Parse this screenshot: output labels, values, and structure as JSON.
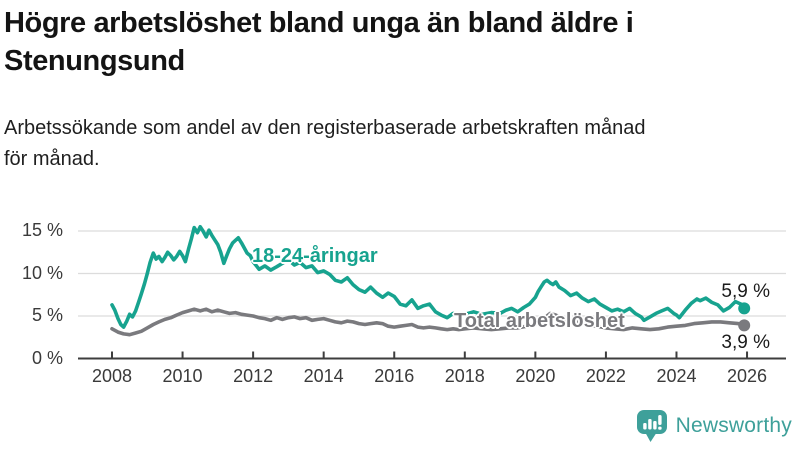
{
  "header": {
    "title_lines": [
      "Högre arbetslöshet bland unga än bland äldre i",
      "Stenungsund"
    ],
    "subtitle_lines": [
      "Arbetssökande som andel av den registerbaserade arbetskraften månad",
      "för månad."
    ]
  },
  "footer": {
    "brand": "Newsworthy",
    "brand_color": "#3EA09A",
    "logo_icon": "bar-chart-speech-bubble"
  },
  "chart_data": {
    "type": "line",
    "title": "Högre arbetslöshet bland unga än bland äldre i Stenungsund",
    "subtitle": "Arbetssökande som andel av den registerbaserade arbetskraften månad för månad.",
    "unit": "%",
    "xlabel": "",
    "ylabel": "",
    "xlim": [
      2007.8,
      2026.4
    ],
    "ylim": [
      0,
      16.5
    ],
    "grid": "horizontal",
    "gridline_color": "#dcdcdc",
    "axis_color": "#3d3d3d",
    "legend_position": "inline-labels",
    "x_ticks": [
      2008,
      2010,
      2012,
      2014,
      2016,
      2018,
      2020,
      2022,
      2024,
      2026
    ],
    "y_ticks": [
      {
        "value": 0,
        "label": "0 %"
      },
      {
        "value": 5,
        "label": "5 %"
      },
      {
        "value": 10,
        "label": "10 %"
      },
      {
        "value": 15,
        "label": "15 %"
      }
    ],
    "series": [
      {
        "name": "18-24-åringar",
        "color": "#17A38F",
        "end_label": "5,9 %",
        "end_value": 5.9,
        "points": [
          [
            2008,
            6.3
          ],
          [
            2008.08,
            5.7
          ],
          [
            2008.17,
            4.7
          ],
          [
            2008.25,
            4
          ],
          [
            2008.33,
            3.7
          ],
          [
            2008.42,
            4.4
          ],
          [
            2008.5,
            5.2
          ],
          [
            2008.58,
            4.9
          ],
          [
            2008.67,
            5.6
          ],
          [
            2008.75,
            6.6
          ],
          [
            2008.83,
            7.6
          ],
          [
            2008.92,
            8.8
          ],
          [
            2009,
            10
          ],
          [
            2009.08,
            11.3
          ],
          [
            2009.17,
            12.4
          ],
          [
            2009.25,
            11.7
          ],
          [
            2009.33,
            12
          ],
          [
            2009.42,
            11.4
          ],
          [
            2009.5,
            11.9
          ],
          [
            2009.58,
            12.5
          ],
          [
            2009.67,
            12.1
          ],
          [
            2009.75,
            11.6
          ],
          [
            2009.83,
            12
          ],
          [
            2009.92,
            12.6
          ],
          [
            2010,
            12.1
          ],
          [
            2010.08,
            11.4
          ],
          [
            2010.17,
            12.9
          ],
          [
            2010.25,
            14.1
          ],
          [
            2010.33,
            15.4
          ],
          [
            2010.42,
            14.8
          ],
          [
            2010.5,
            15.5
          ],
          [
            2010.58,
            15
          ],
          [
            2010.67,
            14.3
          ],
          [
            2010.75,
            15.1
          ],
          [
            2010.83,
            14.5
          ],
          [
            2010.92,
            13.9
          ],
          [
            2011,
            13.4
          ],
          [
            2011.08,
            12.5
          ],
          [
            2011.17,
            11.2
          ],
          [
            2011.25,
            12.1
          ],
          [
            2011.33,
            12.9
          ],
          [
            2011.42,
            13.6
          ],
          [
            2011.5,
            13.9
          ],
          [
            2011.58,
            14.2
          ],
          [
            2011.67,
            13.6
          ],
          [
            2011.75,
            13
          ],
          [
            2011.83,
            12.4
          ],
          [
            2011.92,
            12.1
          ],
          [
            2012,
            11.4
          ],
          [
            2012.17,
            10.5
          ],
          [
            2012.33,
            10.9
          ],
          [
            2012.5,
            10.4
          ],
          [
            2012.67,
            10.8
          ],
          [
            2012.83,
            11.2
          ],
          [
            2013,
            11.6
          ],
          [
            2013.17,
            11
          ],
          [
            2013.33,
            11.3
          ],
          [
            2013.5,
            10.7
          ],
          [
            2013.67,
            10.9
          ],
          [
            2013.83,
            10.1
          ],
          [
            2014,
            10.3
          ],
          [
            2014.17,
            9.9
          ],
          [
            2014.33,
            9.2
          ],
          [
            2014.5,
            9
          ],
          [
            2014.67,
            9.5
          ],
          [
            2014.83,
            8.7
          ],
          [
            2015,
            8.1
          ],
          [
            2015.17,
            7.8
          ],
          [
            2015.33,
            8.4
          ],
          [
            2015.5,
            7.7
          ],
          [
            2015.67,
            7.2
          ],
          [
            2015.83,
            7.7
          ],
          [
            2016,
            7.3
          ],
          [
            2016.17,
            6.4
          ],
          [
            2016.33,
            6.2
          ],
          [
            2016.5,
            6.9
          ],
          [
            2016.67,
            5.9
          ],
          [
            2016.83,
            6.2
          ],
          [
            2017,
            6.4
          ],
          [
            2017.17,
            5.5
          ],
          [
            2017.33,
            5.1
          ],
          [
            2017.5,
            4.8
          ],
          [
            2017.67,
            5.3
          ],
          [
            2017.83,
            5
          ],
          [
            2018,
            5.2
          ],
          [
            2018.25,
            5.5
          ],
          [
            2018.5,
            5.2
          ],
          [
            2018.75,
            5.4
          ],
          [
            2019,
            5.3
          ],
          [
            2019.17,
            5.7
          ],
          [
            2019.33,
            5.9
          ],
          [
            2019.5,
            5.5
          ],
          [
            2019.67,
            6
          ],
          [
            2019.83,
            6.4
          ],
          [
            2020,
            7.2
          ],
          [
            2020.08,
            7.9
          ],
          [
            2020.17,
            8.5
          ],
          [
            2020.25,
            9
          ],
          [
            2020.33,
            9.2
          ],
          [
            2020.42,
            8.9
          ],
          [
            2020.5,
            8.7
          ],
          [
            2020.58,
            9
          ],
          [
            2020.67,
            8.4
          ],
          [
            2020.83,
            8
          ],
          [
            2021,
            7.4
          ],
          [
            2021.17,
            7.7
          ],
          [
            2021.33,
            7.1
          ],
          [
            2021.5,
            6.7
          ],
          [
            2021.67,
            7
          ],
          [
            2021.83,
            6.4
          ],
          [
            2022,
            6
          ],
          [
            2022.17,
            5.6
          ],
          [
            2022.33,
            5.8
          ],
          [
            2022.5,
            5.5
          ],
          [
            2022.67,
            5.9
          ],
          [
            2022.83,
            5.3
          ],
          [
            2023,
            4.9
          ],
          [
            2023.08,
            4.5
          ],
          [
            2023.25,
            4.9
          ],
          [
            2023.42,
            5.3
          ],
          [
            2023.58,
            5.6
          ],
          [
            2023.75,
            5.9
          ],
          [
            2023.92,
            5.3
          ],
          [
            2024,
            5.1
          ],
          [
            2024.08,
            4.8
          ],
          [
            2024.25,
            5.7
          ],
          [
            2024.42,
            6.5
          ],
          [
            2024.58,
            7
          ],
          [
            2024.67,
            6.8
          ],
          [
            2024.83,
            7.1
          ],
          [
            2025,
            6.6
          ],
          [
            2025.17,
            6.3
          ],
          [
            2025.33,
            5.6
          ],
          [
            2025.5,
            6
          ],
          [
            2025.67,
            6.7
          ],
          [
            2025.83,
            6.4
          ],
          [
            2025.92,
            5.9
          ]
        ]
      },
      {
        "name": "Total arbetslöshet",
        "color": "#7A7A7E",
        "end_label": "3,9 %",
        "end_value": 3.9,
        "points": [
          [
            2008,
            3.5
          ],
          [
            2008.17,
            3.1
          ],
          [
            2008.33,
            2.9
          ],
          [
            2008.5,
            2.8
          ],
          [
            2008.67,
            3
          ],
          [
            2008.83,
            3.2
          ],
          [
            2009,
            3.6
          ],
          [
            2009.17,
            4
          ],
          [
            2009.33,
            4.3
          ],
          [
            2009.5,
            4.6
          ],
          [
            2009.67,
            4.8
          ],
          [
            2009.83,
            5.1
          ],
          [
            2010,
            5.4
          ],
          [
            2010.17,
            5.6
          ],
          [
            2010.33,
            5.8
          ],
          [
            2010.5,
            5.6
          ],
          [
            2010.67,
            5.8
          ],
          [
            2010.83,
            5.5
          ],
          [
            2011,
            5.7
          ],
          [
            2011.17,
            5.5
          ],
          [
            2011.33,
            5.3
          ],
          [
            2011.5,
            5.4
          ],
          [
            2011.67,
            5.2
          ],
          [
            2011.83,
            5.1
          ],
          [
            2012,
            5
          ],
          [
            2012.17,
            4.8
          ],
          [
            2012.33,
            4.7
          ],
          [
            2012.5,
            4.5
          ],
          [
            2012.67,
            4.8
          ],
          [
            2012.83,
            4.6
          ],
          [
            2013,
            4.8
          ],
          [
            2013.17,
            4.9
          ],
          [
            2013.33,
            4.7
          ],
          [
            2013.5,
            4.8
          ],
          [
            2013.67,
            4.5
          ],
          [
            2013.83,
            4.6
          ],
          [
            2014,
            4.7
          ],
          [
            2014.17,
            4.5
          ],
          [
            2014.33,
            4.3
          ],
          [
            2014.5,
            4.2
          ],
          [
            2014.67,
            4.4
          ],
          [
            2014.83,
            4.3
          ],
          [
            2015,
            4.1
          ],
          [
            2015.17,
            4
          ],
          [
            2015.33,
            4.1
          ],
          [
            2015.5,
            4.2
          ],
          [
            2015.67,
            4.1
          ],
          [
            2015.83,
            3.8
          ],
          [
            2016,
            3.7
          ],
          [
            2016.17,
            3.8
          ],
          [
            2016.33,
            3.9
          ],
          [
            2016.5,
            4
          ],
          [
            2016.67,
            3.7
          ],
          [
            2016.83,
            3.6
          ],
          [
            2017,
            3.7
          ],
          [
            2017.17,
            3.6
          ],
          [
            2017.33,
            3.5
          ],
          [
            2017.5,
            3.4
          ],
          [
            2017.67,
            3.5
          ],
          [
            2017.83,
            3.4
          ],
          [
            2018,
            3.5
          ],
          [
            2018.25,
            3.6
          ],
          [
            2018.5,
            3.5
          ],
          [
            2018.75,
            3.4
          ],
          [
            2019,
            3.5
          ],
          [
            2019.25,
            3.6
          ],
          [
            2019.5,
            3.6
          ],
          [
            2019.75,
            3.8
          ],
          [
            2020,
            4
          ],
          [
            2020.17,
            4.5
          ],
          [
            2020.33,
            5
          ],
          [
            2020.42,
            5.3
          ],
          [
            2020.58,
            5.1
          ],
          [
            2020.75,
            4.8
          ],
          [
            2020.92,
            4.6
          ],
          [
            2021,
            4.5
          ],
          [
            2021.25,
            4.2
          ],
          [
            2021.5,
            4
          ],
          [
            2021.75,
            3.8
          ],
          [
            2022,
            3.6
          ],
          [
            2022.25,
            3.5
          ],
          [
            2022.5,
            3.4
          ],
          [
            2022.75,
            3.6
          ],
          [
            2023,
            3.5
          ],
          [
            2023.25,
            3.4
          ],
          [
            2023.5,
            3.5
          ],
          [
            2023.75,
            3.7
          ],
          [
            2024,
            3.8
          ],
          [
            2024.25,
            3.9
          ],
          [
            2024.5,
            4.1
          ],
          [
            2024.75,
            4.2
          ],
          [
            2025,
            4.3
          ],
          [
            2025.25,
            4.3
          ],
          [
            2025.5,
            4.2
          ],
          [
            2025.75,
            4.1
          ],
          [
            2025.92,
            3.9
          ]
        ]
      }
    ]
  }
}
